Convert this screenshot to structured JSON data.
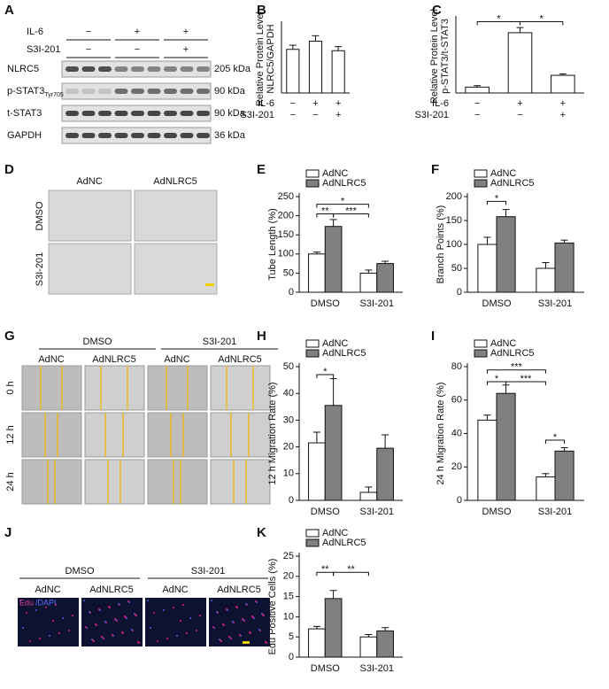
{
  "panel_letters": [
    "A",
    "B",
    "C",
    "D",
    "E",
    "F",
    "G",
    "H",
    "I",
    "J",
    "K"
  ],
  "blot": {
    "treatments": [
      {
        "label": "IL-6",
        "signs": [
          "−",
          "+",
          "+"
        ]
      },
      {
        "label": "S3I-201",
        "signs": [
          "−",
          "−",
          "+"
        ]
      }
    ],
    "bands": [
      {
        "name": "NLRC5",
        "sub": "",
        "size": "205 kDa"
      },
      {
        "name": "p-STAT3",
        "sub": "Tyr705",
        "size": "90 kDa"
      },
      {
        "name": "t-STAT3",
        "sub": "",
        "size": "90 kDa"
      },
      {
        "name": "GAPDH",
        "sub": "",
        "size": "36 kDa"
      }
    ]
  },
  "tube_images": {
    "columns": [
      "AdNC",
      "AdNLRC5"
    ],
    "rows": [
      "DMSO",
      "S3I-201"
    ]
  },
  "wound_images": {
    "groups": [
      "DMSO",
      "S3I-201"
    ],
    "columns": [
      "AdNC",
      "AdNLRC5",
      "AdNC",
      "AdNLRC5"
    ],
    "rows": [
      "0 h",
      "12 h",
      "24 h"
    ]
  },
  "edu_images": {
    "groups": [
      "DMSO",
      "S3I-201"
    ],
    "columns": [
      "AdNC",
      "AdNLRC5",
      "AdNC",
      "AdNLRC5"
    ],
    "stain_label": [
      "Edu",
      "/DAPI"
    ]
  },
  "chart_data": [
    {
      "type": "bar",
      "ylabel": [
        "Relative Protein Level",
        "NLRC5/GAPDH"
      ],
      "values": [
        0.32,
        0.38,
        0.31
      ],
      "errors": [
        0.03,
        0.04,
        0.03
      ],
      "color": "#ffffff",
      "ylim": [
        0,
        0.5
      ],
      "condition_rows": [
        {
          "label": "IL-6",
          "signs": [
            "−",
            "+",
            "+"
          ]
        },
        {
          "label": "S3I-201",
          "signs": [
            "−",
            "−",
            "+"
          ]
        }
      ],
      "annotations": []
    },
    {
      "type": "bar",
      "ylabel": [
        "Relative Protein Level",
        "p-STAT3/t-STAT3"
      ],
      "values": [
        0.08,
        0.82,
        0.24
      ],
      "errors": [
        0.02,
        0.07,
        0.02
      ],
      "color": "#ffffff",
      "ylim": [
        0,
        1.0
      ],
      "condition_rows": [
        {
          "label": "IL-6",
          "signs": [
            "−",
            "+",
            "+"
          ]
        },
        {
          "label": "S3I-201",
          "signs": [
            "−",
            "−",
            "+"
          ]
        }
      ],
      "annotations": [
        "*",
        "*"
      ]
    },
    {
      "type": "grouped_bar",
      "ylabel": [
        "Tube Length (%)"
      ],
      "categories": [
        "DMSO",
        "S3I-201"
      ],
      "series": [
        {
          "name": "AdNC",
          "color": "#ffffff",
          "values": [
            100,
            50
          ],
          "errors": [
            5,
            8
          ]
        },
        {
          "name": "AdNLRC5",
          "color": "#808080",
          "values": [
            172,
            75
          ],
          "errors": [
            18,
            6
          ]
        }
      ],
      "ylim": [
        0,
        250
      ],
      "yticks": [
        0,
        50,
        100,
        150,
        200,
        250
      ],
      "annotations": [
        "*",
        "**",
        "***"
      ]
    },
    {
      "type": "grouped_bar",
      "ylabel": [
        "Branch Points (%)"
      ],
      "categories": [
        "DMSO",
        "S3I-201"
      ],
      "series": [
        {
          "name": "AdNC",
          "color": "#ffffff",
          "values": [
            100,
            50
          ],
          "errors": [
            15,
            12
          ]
        },
        {
          "name": "AdNLRC5",
          "color": "#808080",
          "values": [
            158,
            103
          ],
          "errors": [
            15,
            6
          ]
        }
      ],
      "ylim": [
        0,
        200
      ],
      "yticks": [
        0,
        50,
        100,
        150,
        200
      ],
      "annotations": [
        "*"
      ]
    },
    {
      "type": "grouped_bar",
      "ylabel": [
        "12 h Migration Rate (%)"
      ],
      "categories": [
        "DMSO",
        "S3I-201"
      ],
      "series": [
        {
          "name": "AdNC",
          "color": "#ffffff",
          "values": [
            21.5,
            3
          ],
          "errors": [
            4,
            2
          ]
        },
        {
          "name": "AdNLRC5",
          "color": "#808080",
          "values": [
            35.5,
            19.5
          ],
          "errors": [
            10,
            5
          ]
        }
      ],
      "ylim": [
        0,
        50
      ],
      "yticks": [
        0,
        10,
        20,
        30,
        40,
        50
      ],
      "annotations": [
        "*"
      ]
    },
    {
      "type": "grouped_bar",
      "ylabel": [
        "24 h Migration Rate (%)"
      ],
      "categories": [
        "DMSO",
        "S3I-201"
      ],
      "series": [
        {
          "name": "AdNC",
          "color": "#ffffff",
          "values": [
            48,
            14
          ],
          "errors": [
            3,
            2
          ]
        },
        {
          "name": "AdNLRC5",
          "color": "#808080",
          "values": [
            64,
            29.5
          ],
          "errors": [
            5,
            2
          ]
        }
      ],
      "ylim": [
        0,
        80
      ],
      "yticks": [
        0,
        20,
        40,
        60,
        80
      ],
      "annotations": [
        "***",
        "*",
        "***",
        "*"
      ]
    },
    {
      "type": "grouped_bar",
      "ylabel": [
        "Edu Positive Cells (%)"
      ],
      "categories": [
        "DMSO",
        "S3I-201"
      ],
      "series": [
        {
          "name": "AdNC",
          "color": "#ffffff",
          "values": [
            7,
            5
          ],
          "errors": [
            0.6,
            0.6
          ]
        },
        {
          "name": "AdNLRC5",
          "color": "#808080",
          "values": [
            14.5,
            6.5
          ],
          "errors": [
            2,
            0.8
          ]
        }
      ],
      "ylim": [
        0,
        25
      ],
      "yticks": [
        0,
        5,
        10,
        15,
        20,
        25
      ],
      "annotations": [
        "**",
        "**"
      ]
    }
  ]
}
